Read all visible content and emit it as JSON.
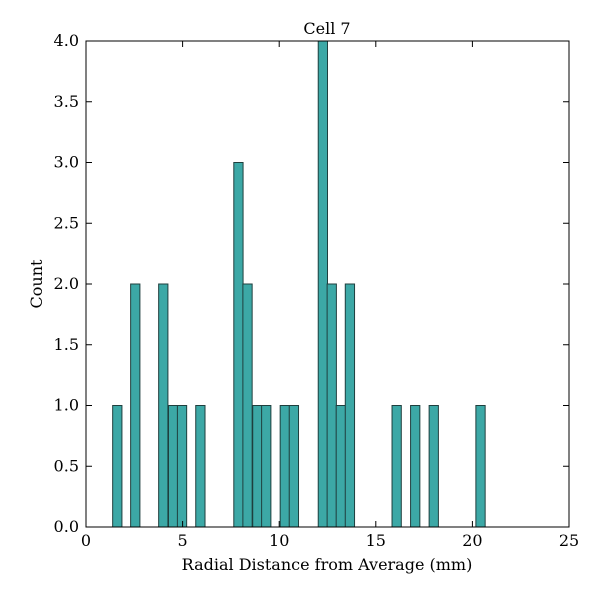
{
  "chart_data": {
    "type": "bar",
    "title": "Cell 7",
    "xlabel": "Radial Distance from Average (mm)",
    "ylabel": "Count",
    "xlim": [
      0,
      25
    ],
    "ylim": [
      0,
      4.0
    ],
    "xticks": [
      0,
      5,
      10,
      15,
      20,
      25
    ],
    "xtick_labels": [
      "0",
      "5",
      "10",
      "15",
      "20",
      "25"
    ],
    "yticks": [
      0,
      0.5,
      1.0,
      1.5,
      2.0,
      2.5,
      3.0,
      3.5,
      4.0
    ],
    "ytick_labels": [
      "0.0",
      "0.5",
      "1.0",
      "1.5",
      "2.0",
      "2.5",
      "3.0",
      "3.5",
      "4.0"
    ],
    "bin_width": 0.48,
    "bar_color": "#3ca8a6",
    "edge_color": "#1f3f3e",
    "grid": false,
    "bins": [
      {
        "start": 1.38,
        "count": 1
      },
      {
        "start": 2.31,
        "count": 2
      },
      {
        "start": 3.76,
        "count": 2
      },
      {
        "start": 4.27,
        "count": 1
      },
      {
        "start": 4.73,
        "count": 1
      },
      {
        "start": 5.68,
        "count": 1
      },
      {
        "start": 7.65,
        "count": 3
      },
      {
        "start": 8.12,
        "count": 2
      },
      {
        "start": 8.63,
        "count": 1
      },
      {
        "start": 9.09,
        "count": 1
      },
      {
        "start": 10.05,
        "count": 1
      },
      {
        "start": 10.52,
        "count": 1
      },
      {
        "start": 12.02,
        "count": 4
      },
      {
        "start": 12.48,
        "count": 2
      },
      {
        "start": 12.95,
        "count": 1
      },
      {
        "start": 13.42,
        "count": 2
      },
      {
        "start": 15.84,
        "count": 1
      },
      {
        "start": 16.8,
        "count": 1
      },
      {
        "start": 17.76,
        "count": 1
      },
      {
        "start": 20.18,
        "count": 1
      }
    ]
  }
}
